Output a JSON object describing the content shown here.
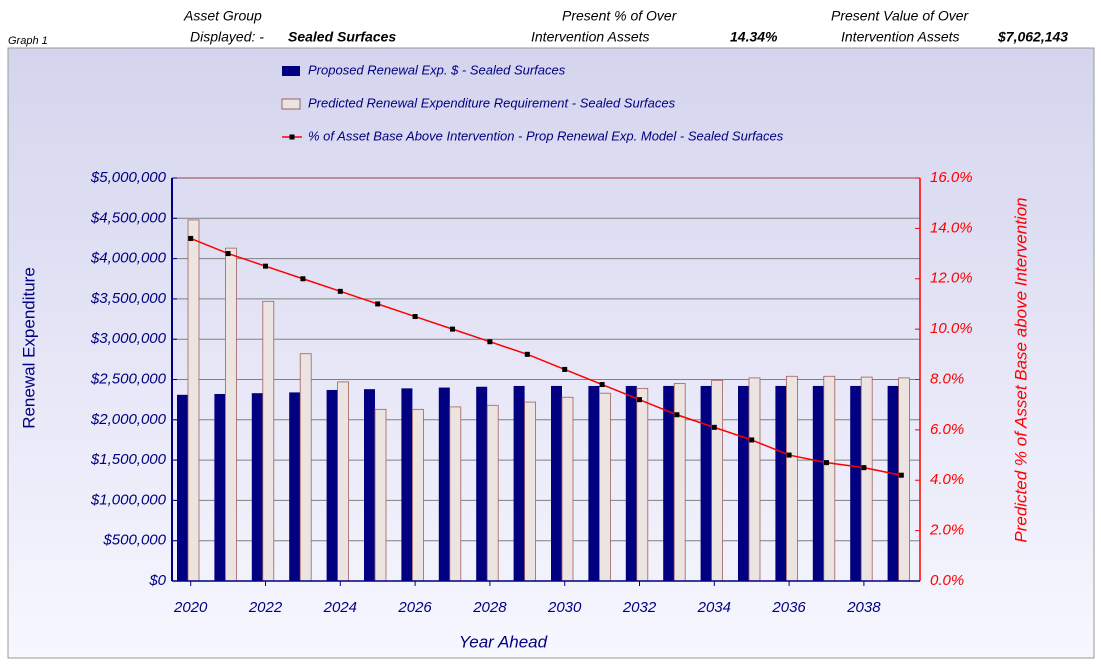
{
  "header": {
    "graph": "Graph  1",
    "group_label_1": "Asset Group",
    "group_label_2": "Displayed: -",
    "group_value": "Sealed Surfaces",
    "pct_label_1": "Present % of Over",
    "pct_label_2": "Intervention Assets",
    "pct_value": "14.34%",
    "val_label_1": "Present Value of Over",
    "val_label_2": "Intervention Assets",
    "val_value": "$7,062,143"
  },
  "chart_data": {
    "type": "bar",
    "x_label": "Year Ahead",
    "y_label": "Renewal Expenditure",
    "y2_label": "Predicted % of Asset Base above Intervention",
    "x": [
      2020,
      2021,
      2022,
      2023,
      2024,
      2025,
      2026,
      2027,
      2028,
      2029,
      2030,
      2031,
      2032,
      2033,
      2034,
      2035,
      2036,
      2037,
      2038,
      2039
    ],
    "xlim": [
      2019.5,
      2039.5
    ],
    "xticks": [
      2020,
      2022,
      2024,
      2026,
      2028,
      2030,
      2032,
      2034,
      2036,
      2038
    ],
    "ylim": [
      0,
      5000000
    ],
    "yticks": [
      {
        "value": 0,
        "label": "$0"
      },
      {
        "value": 500000,
        "label": "$500,000"
      },
      {
        "value": 1000000,
        "label": "$1,000,000"
      },
      {
        "value": 1500000,
        "label": "$1,500,000"
      },
      {
        "value": 2000000,
        "label": "$2,000,000"
      },
      {
        "value": 2500000,
        "label": "$2,500,000"
      },
      {
        "value": 3000000,
        "label": "$3,000,000"
      },
      {
        "value": 3500000,
        "label": "$3,500,000"
      },
      {
        "value": 4000000,
        "label": "$4,000,000"
      },
      {
        "value": 4500000,
        "label": "$4,500,000"
      },
      {
        "value": 5000000,
        "label": "$5,000,000"
      }
    ],
    "y2lim": [
      0,
      16
    ],
    "y2ticks": [
      {
        "value": 0,
        "label": "0.0%"
      },
      {
        "value": 2,
        "label": "2.0%"
      },
      {
        "value": 4,
        "label": "4.0%"
      },
      {
        "value": 6,
        "label": "6.0%"
      },
      {
        "value": 8,
        "label": "8.0%"
      },
      {
        "value": 10,
        "label": "10.0%"
      },
      {
        "value": 12,
        "label": "12.0%"
      },
      {
        "value": 14,
        "label": "14.0%"
      },
      {
        "value": 16,
        "label": "16.0%"
      }
    ],
    "grid": true,
    "series": [
      {
        "name": "Proposed Renewal Exp. $ -  Sealed Surfaces",
        "type": "bar",
        "color": "#000080",
        "values": [
          2310000,
          2320000,
          2330000,
          2340000,
          2370000,
          2380000,
          2390000,
          2400000,
          2410000,
          2420000,
          2420000,
          2420000,
          2420000,
          2420000,
          2420000,
          2420000,
          2420000,
          2420000,
          2420000,
          2420000
        ]
      },
      {
        "name": "Predicted Renewal Expenditure Requirement -  Sealed Surfaces",
        "type": "bar",
        "color": "#ece4e0",
        "values": [
          4480000,
          4130000,
          3470000,
          2820000,
          2470000,
          2130000,
          2130000,
          2160000,
          2180000,
          2220000,
          2280000,
          2330000,
          2390000,
          2450000,
          2490000,
          2520000,
          2540000,
          2540000,
          2530000,
          2520000
        ]
      },
      {
        "name": "% of Asset Base Above Intervention - Prop Renewal Exp. Model -  Sealed Surfaces",
        "type": "line",
        "color": "#ff0000",
        "axis": "y2",
        "values": [
          13.6,
          13.0,
          12.5,
          12.0,
          11.5,
          11.0,
          10.5,
          10.0,
          9.5,
          9.0,
          8.4,
          7.8,
          7.2,
          6.6,
          6.1,
          5.6,
          5.0,
          4.7,
          4.5,
          4.2
        ]
      }
    ]
  }
}
